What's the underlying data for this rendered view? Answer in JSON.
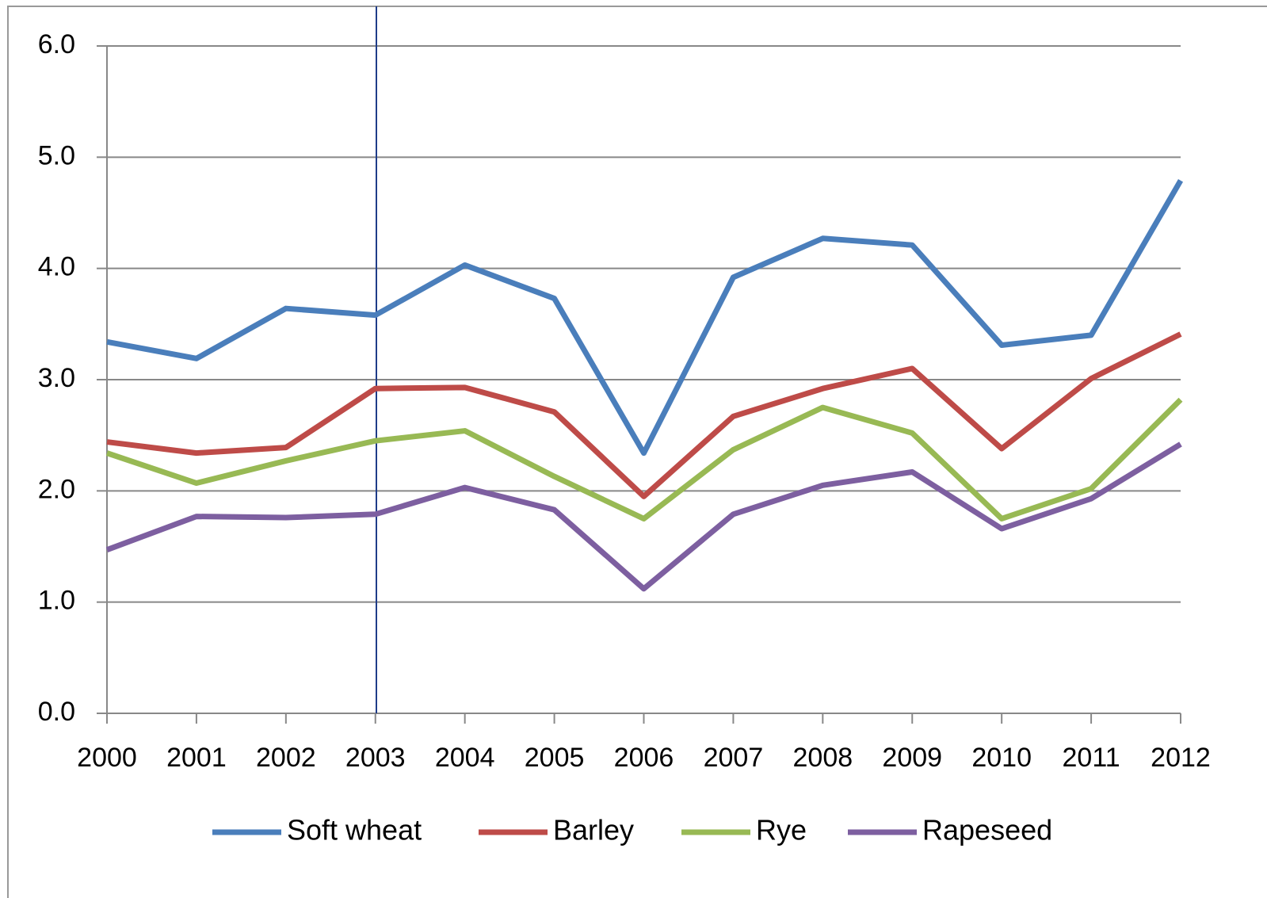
{
  "chart_data": {
    "type": "line",
    "categories": [
      "2000",
      "2001",
      "2002",
      "2003",
      "2004",
      "2005",
      "2006",
      "2007",
      "2008",
      "2009",
      "2010",
      "2011",
      "2012"
    ],
    "series": [
      {
        "name": "Soft wheat",
        "color": "#4a7ebb",
        "values": [
          3.34,
          3.19,
          3.64,
          3.58,
          4.03,
          3.73,
          2.34,
          3.92,
          4.27,
          4.21,
          3.31,
          3.4,
          4.79
        ]
      },
      {
        "name": "Barley",
        "color": "#be4b48",
        "values": [
          2.44,
          2.34,
          2.39,
          2.92,
          2.93,
          2.71,
          1.95,
          2.67,
          2.92,
          3.1,
          2.38,
          3.01,
          3.41
        ]
      },
      {
        "name": "Rye",
        "color": "#98b954",
        "values": [
          2.34,
          2.07,
          2.27,
          2.45,
          2.54,
          2.13,
          1.75,
          2.37,
          2.75,
          2.52,
          1.75,
          2.02,
          2.82
        ]
      },
      {
        "name": "Rapeseed",
        "color": "#7d5fa0",
        "values": [
          1.47,
          1.77,
          1.76,
          1.79,
          2.03,
          1.83,
          1.12,
          1.79,
          2.05,
          2.17,
          1.66,
          1.93,
          2.42
        ]
      }
    ],
    "ylim": [
      0,
      6
    ],
    "yticks": [
      {
        "value": 0,
        "label": "0.0"
      },
      {
        "value": 1,
        "label": "1.0"
      },
      {
        "value": 2,
        "label": "2.0"
      },
      {
        "value": 3,
        "label": "3.0"
      },
      {
        "value": 4,
        "label": "4.0"
      },
      {
        "value": 5,
        "label": "5.0"
      },
      {
        "value": 6,
        "label": "6.0"
      }
    ],
    "grid": true,
    "legend": "bottom"
  }
}
